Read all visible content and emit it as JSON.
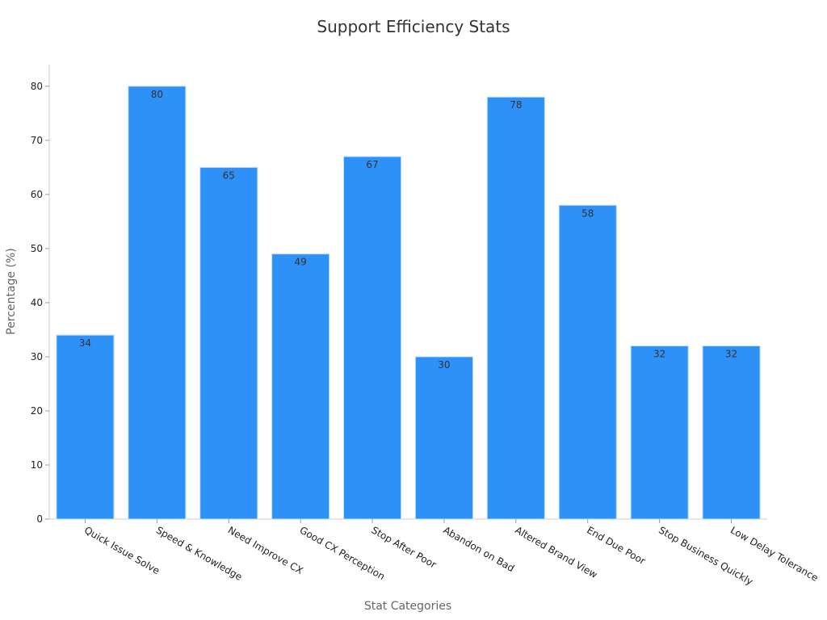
{
  "chart_data": {
    "type": "bar",
    "title": "Support Efficiency Stats",
    "xlabel": "Stat Categories",
    "ylabel": "Percentage (%)",
    "categories": [
      "Quick Issue Solve",
      "Speed & Knowledge",
      "Need Improve CX",
      "Good CX Perception",
      "Stop After Poor",
      "Abandon on Bad",
      "Altered Brand View",
      "End Due Poor",
      "Stop Business Quickly",
      "Low Delay Tolerance"
    ],
    "values": [
      34,
      80,
      65,
      49,
      67,
      30,
      78,
      58,
      32,
      32
    ],
    "ylim": [
      0,
      84
    ],
    "yticks": [
      0,
      10,
      20,
      30,
      40,
      50,
      60,
      70,
      80
    ],
    "bar_color": "#2e91f8",
    "bar_edge_color": "#bfe0ff",
    "grid": false,
    "data_labels": true
  }
}
